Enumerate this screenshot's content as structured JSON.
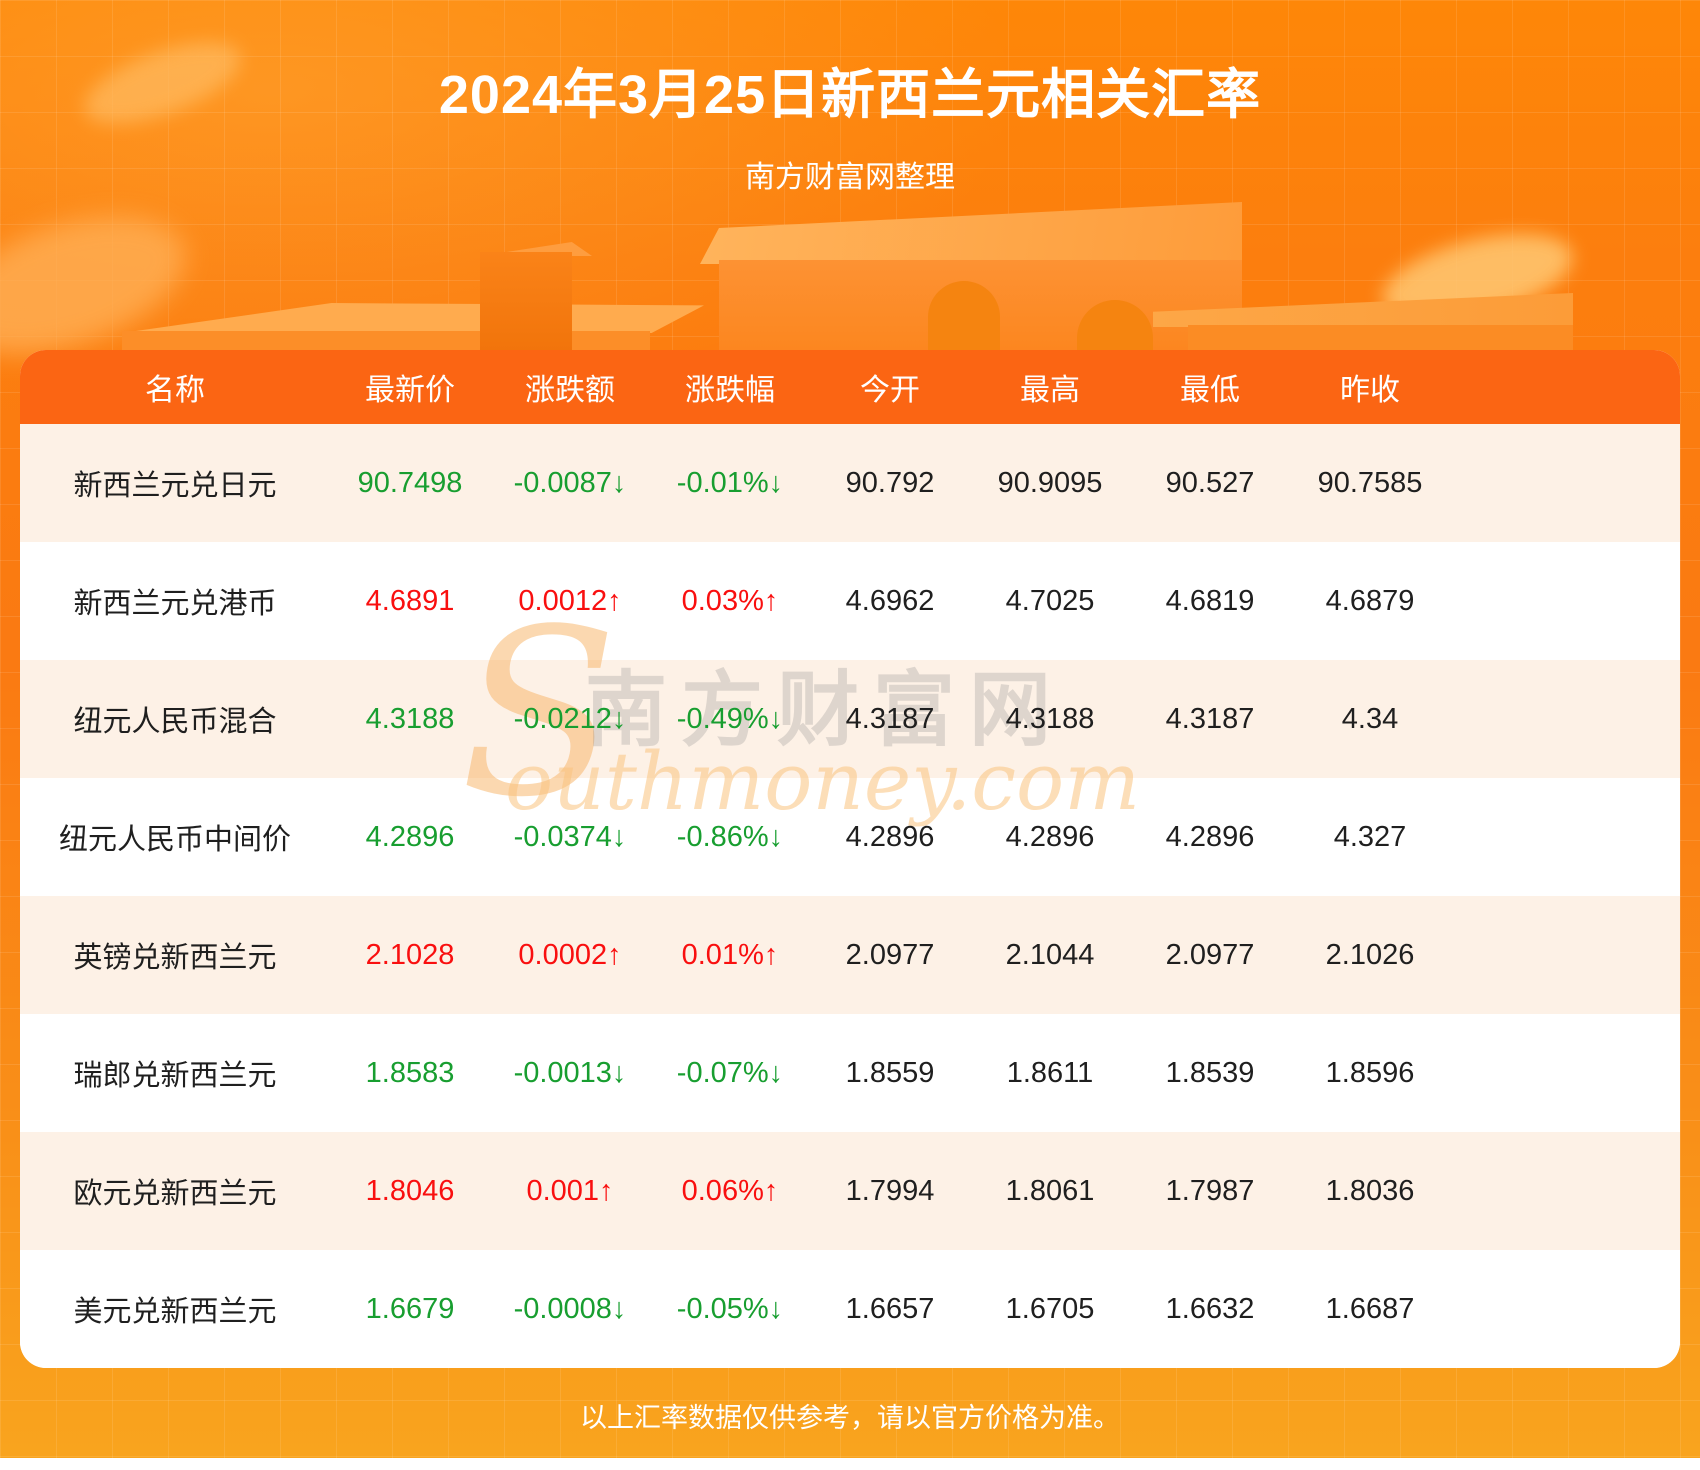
{
  "page": {
    "title": "2024年3月25日新西兰元相关汇率",
    "subtitle": "南方财富网整理",
    "disclaimer": "以上汇率数据仅供参考，请以官方价格为准。"
  },
  "watermark": {
    "initial": "S",
    "cn": "南方财富网",
    "en": "outhmoney.com"
  },
  "colors": {
    "up": "#f90f0f",
    "down": "#189e30",
    "header-bg": "#fb6513",
    "row-alt": "#fdf1e6"
  },
  "chart_data": {
    "type": "table",
    "title": "2024年3月25日新西兰元相关汇率",
    "subtitle": "南方财富网整理",
    "columns": [
      "名称",
      "最新价",
      "涨跌额",
      "涨跌幅",
      "今开",
      "最高",
      "最低",
      "昨收"
    ],
    "rows": [
      {
        "name": "新西兰元兑日元",
        "last": "90.7498",
        "change": "-0.0087↓",
        "pct": "-0.01%↓",
        "open": "90.792",
        "high": "90.9095",
        "low": "90.527",
        "prev": "90.7585",
        "trend": "down"
      },
      {
        "name": "新西兰元兑港币",
        "last": "4.6891",
        "change": "0.0012↑",
        "pct": "0.03%↑",
        "open": "4.6962",
        "high": "4.7025",
        "low": "4.6819",
        "prev": "4.6879",
        "trend": "up"
      },
      {
        "name": "纽元人民币混合",
        "last": "4.3188",
        "change": "-0.0212↓",
        "pct": "-0.49%↓",
        "open": "4.3187",
        "high": "4.3188",
        "low": "4.3187",
        "prev": "4.34",
        "trend": "down"
      },
      {
        "name": "纽元人民币中间价",
        "last": "4.2896",
        "change": "-0.0374↓",
        "pct": "-0.86%↓",
        "open": "4.2896",
        "high": "4.2896",
        "low": "4.2896",
        "prev": "4.327",
        "trend": "down"
      },
      {
        "name": "英镑兑新西兰元",
        "last": "2.1028",
        "change": "0.0002↑",
        "pct": "0.01%↑",
        "open": "2.0977",
        "high": "2.1044",
        "low": "2.0977",
        "prev": "2.1026",
        "trend": "up"
      },
      {
        "name": "瑞郎兑新西兰元",
        "last": "1.8583",
        "change": "-0.0013↓",
        "pct": "-0.07%↓",
        "open": "1.8559",
        "high": "1.8611",
        "low": "1.8539",
        "prev": "1.8596",
        "trend": "down"
      },
      {
        "name": "欧元兑新西兰元",
        "last": "1.8046",
        "change": "0.001↑",
        "pct": "0.06%↑",
        "open": "1.7994",
        "high": "1.8061",
        "low": "1.7987",
        "prev": "1.8036",
        "trend": "up"
      },
      {
        "name": "美元兑新西兰元",
        "last": "1.6679",
        "change": "-0.0008↓",
        "pct": "-0.05%↓",
        "open": "1.6657",
        "high": "1.6705",
        "low": "1.6632",
        "prev": "1.6687",
        "trend": "down"
      }
    ]
  }
}
